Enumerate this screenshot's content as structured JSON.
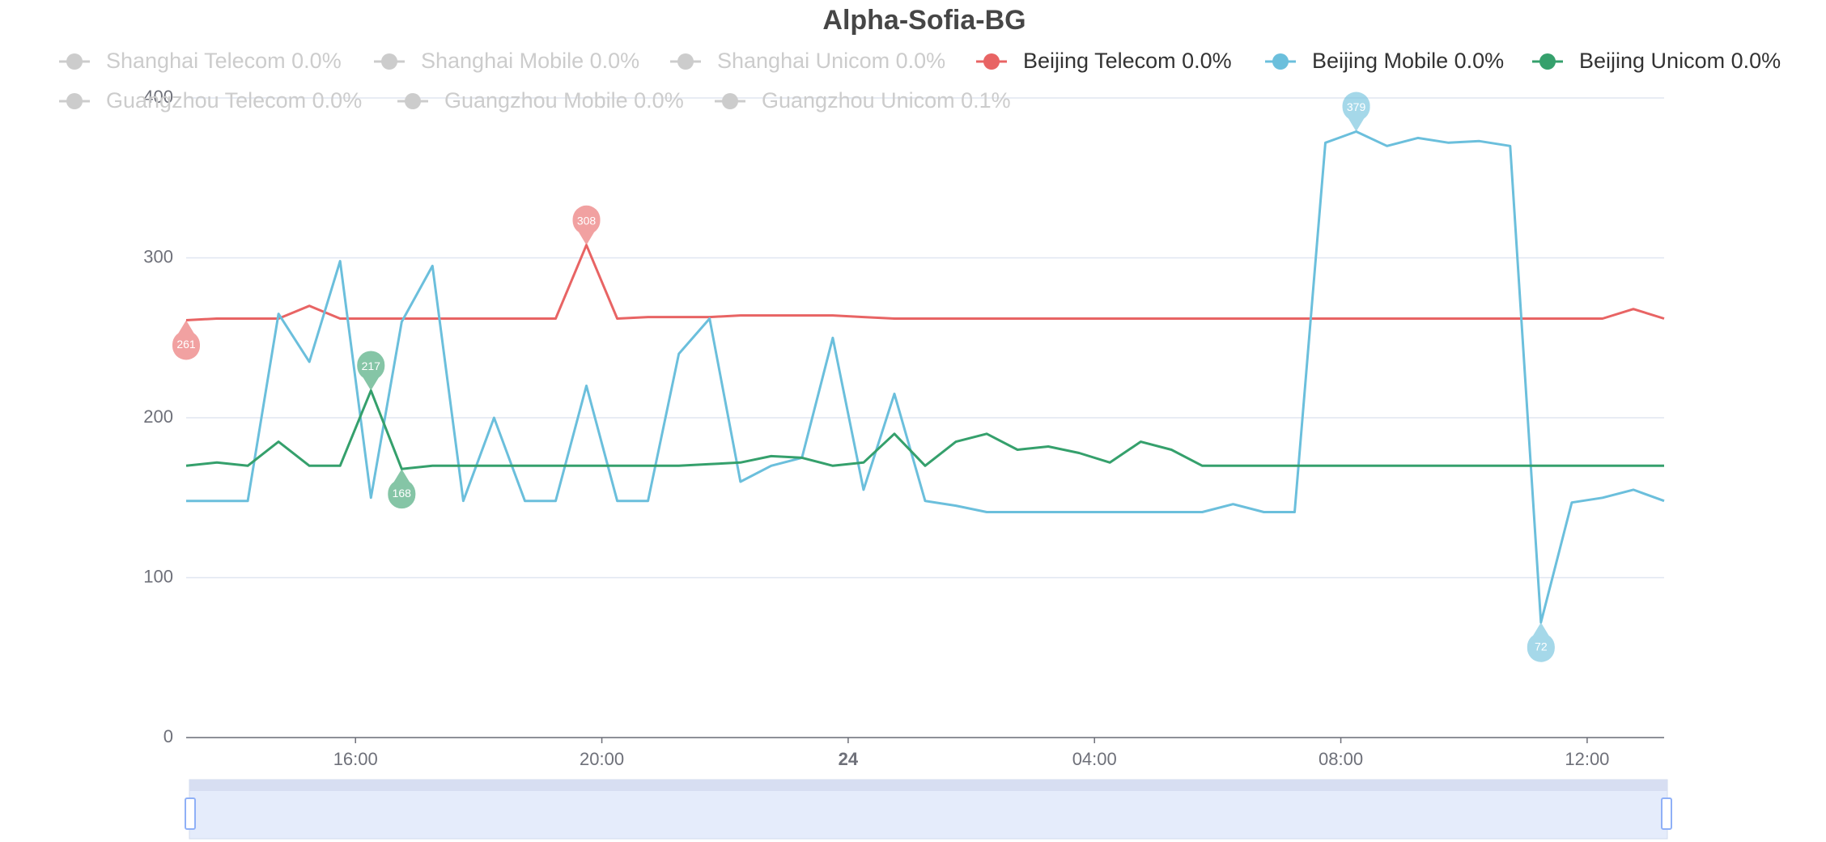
{
  "chart_data": {
    "type": "line",
    "title": "Alpha-Sofia-BG",
    "inactive_color": "#cccccc",
    "x": [
      13.25,
      13.75,
      14.25,
      14.75,
      15.25,
      15.75,
      16.25,
      16.75,
      17.25,
      17.75,
      18.25,
      18.75,
      19.25,
      19.75,
      20.25,
      20.75,
      21.25,
      21.75,
      22.25,
      22.75,
      23.25,
      23.75,
      24.25,
      24.75,
      25.25,
      25.75,
      26.25,
      26.75,
      27.25,
      27.75,
      28.25,
      28.75,
      29.25,
      29.75,
      30.25,
      30.75,
      31.25,
      31.75,
      32.25,
      32.75,
      33.25,
      33.75,
      34.25,
      34.75,
      35.25,
      35.75,
      36.25,
      36.75,
      37.25
    ],
    "xlim": [
      13.25,
      37.25
    ],
    "xticks": [
      {
        "value": 16,
        "label": "16:00"
      },
      {
        "value": 20,
        "label": "20:00"
      },
      {
        "value": 24,
        "label": "24"
      },
      {
        "value": 28,
        "label": "04:00"
      },
      {
        "value": 32,
        "label": "08:00"
      },
      {
        "value": 36,
        "label": "12:00"
      }
    ],
    "ylim": [
      0,
      400
    ],
    "yticks": [
      0,
      100,
      200,
      300,
      400
    ],
    "grid": true,
    "series": [
      {
        "name": "Shanghai Telecom 0.0%",
        "visible": false
      },
      {
        "name": "Shanghai Mobile 0.0%",
        "visible": false
      },
      {
        "name": "Shanghai Unicom 0.0%",
        "visible": false
      },
      {
        "name": "Beijing Telecom 0.0%",
        "visible": true,
        "color": "#e86464",
        "values": [
          261,
          262,
          262,
          262,
          270,
          262,
          262,
          262,
          262,
          262,
          262,
          262,
          262,
          308,
          262,
          263,
          263,
          263,
          264,
          264,
          264,
          264,
          263,
          262,
          262,
          262,
          262,
          262,
          262,
          262,
          262,
          262,
          262,
          262,
          262,
          262,
          262,
          262,
          262,
          262,
          262,
          262,
          262,
          262,
          262,
          262,
          262,
          268,
          262
        ],
        "markers": [
          {
            "x": 19.75,
            "value": 308
          },
          {
            "x": 13.25,
            "value": 261
          }
        ]
      },
      {
        "name": "Beijing Mobile 0.0%",
        "visible": true,
        "color": "#6bbfdc",
        "values": [
          148,
          148,
          148,
          265,
          235,
          298,
          150,
          260,
          295,
          148,
          200,
          148,
          148,
          220,
          148,
          148,
          240,
          262,
          160,
          170,
          175,
          250,
          155,
          215,
          148,
          145,
          141,
          141,
          141,
          141,
          141,
          141,
          141,
          141,
          146,
          141,
          141,
          372,
          379,
          370,
          375,
          372,
          373,
          370,
          72,
          147,
          150,
          155,
          148
        ],
        "markers": [
          {
            "x": 32.25,
            "value": 379
          },
          {
            "x": 35.25,
            "value": 72
          }
        ]
      },
      {
        "name": "Beijing Unicom 0.0%",
        "visible": true,
        "color": "#35a06c",
        "values": [
          170,
          172,
          170,
          185,
          170,
          170,
          217,
          168,
          170,
          170,
          170,
          170,
          170,
          170,
          170,
          170,
          170,
          171,
          172,
          176,
          175,
          170,
          172,
          190,
          170,
          185,
          190,
          180,
          182,
          178,
          172,
          185,
          180,
          170,
          170,
          170,
          170,
          170,
          170,
          170,
          170,
          170,
          170,
          170,
          170,
          170,
          170,
          170,
          170
        ],
        "markers": [
          {
            "x": 16.25,
            "value": 217
          },
          {
            "x": 16.75,
            "value": 168
          }
        ]
      },
      {
        "name": "Guangzhou Telecom 0.0%",
        "visible": false
      },
      {
        "name": "Guangzhou Mobile 0.0%",
        "visible": false
      },
      {
        "name": "Guangzhou Unicom 0.1%",
        "visible": false
      }
    ]
  }
}
